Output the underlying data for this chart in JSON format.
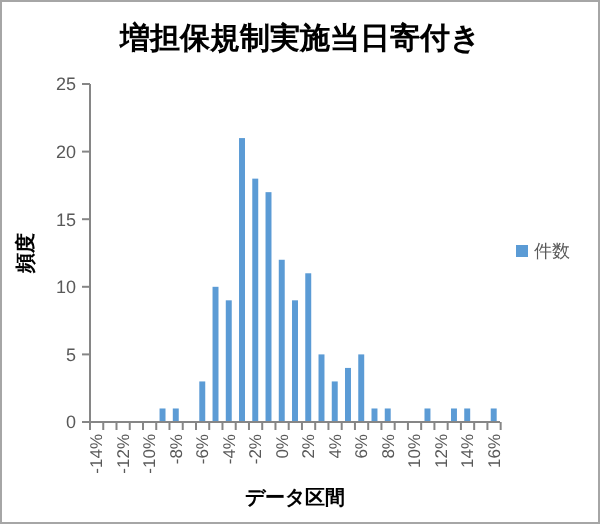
{
  "chart_data": {
    "type": "bar",
    "title": "増担保規制実施当日寄付き",
    "xlabel": "データ区間",
    "ylabel": "頻度",
    "categories": [
      "-14%",
      null,
      "-12%",
      null,
      "-10%",
      null,
      "-8%",
      null,
      "-6%",
      null,
      "-4%",
      null,
      "-2%",
      null,
      "0%",
      null,
      "2%",
      null,
      "4%",
      null,
      "6%",
      null,
      "8%",
      null,
      "10%",
      null,
      "12%",
      null,
      "14%",
      null,
      "16%"
    ],
    "series": [
      {
        "name": "件数",
        "color": "#5b9bd5",
        "values": [
          0,
          0,
          0,
          0,
          0,
          1,
          1,
          0,
          3,
          10,
          9,
          21,
          18,
          17,
          12,
          9,
          11,
          5,
          3,
          4,
          5,
          1,
          1,
          0,
          0,
          1,
          0,
          1,
          1,
          0,
          1
        ]
      }
    ],
    "ylim": [
      0,
      25
    ],
    "yticks": [
      0,
      5,
      10,
      15,
      20,
      25
    ],
    "legend": "right"
  }
}
